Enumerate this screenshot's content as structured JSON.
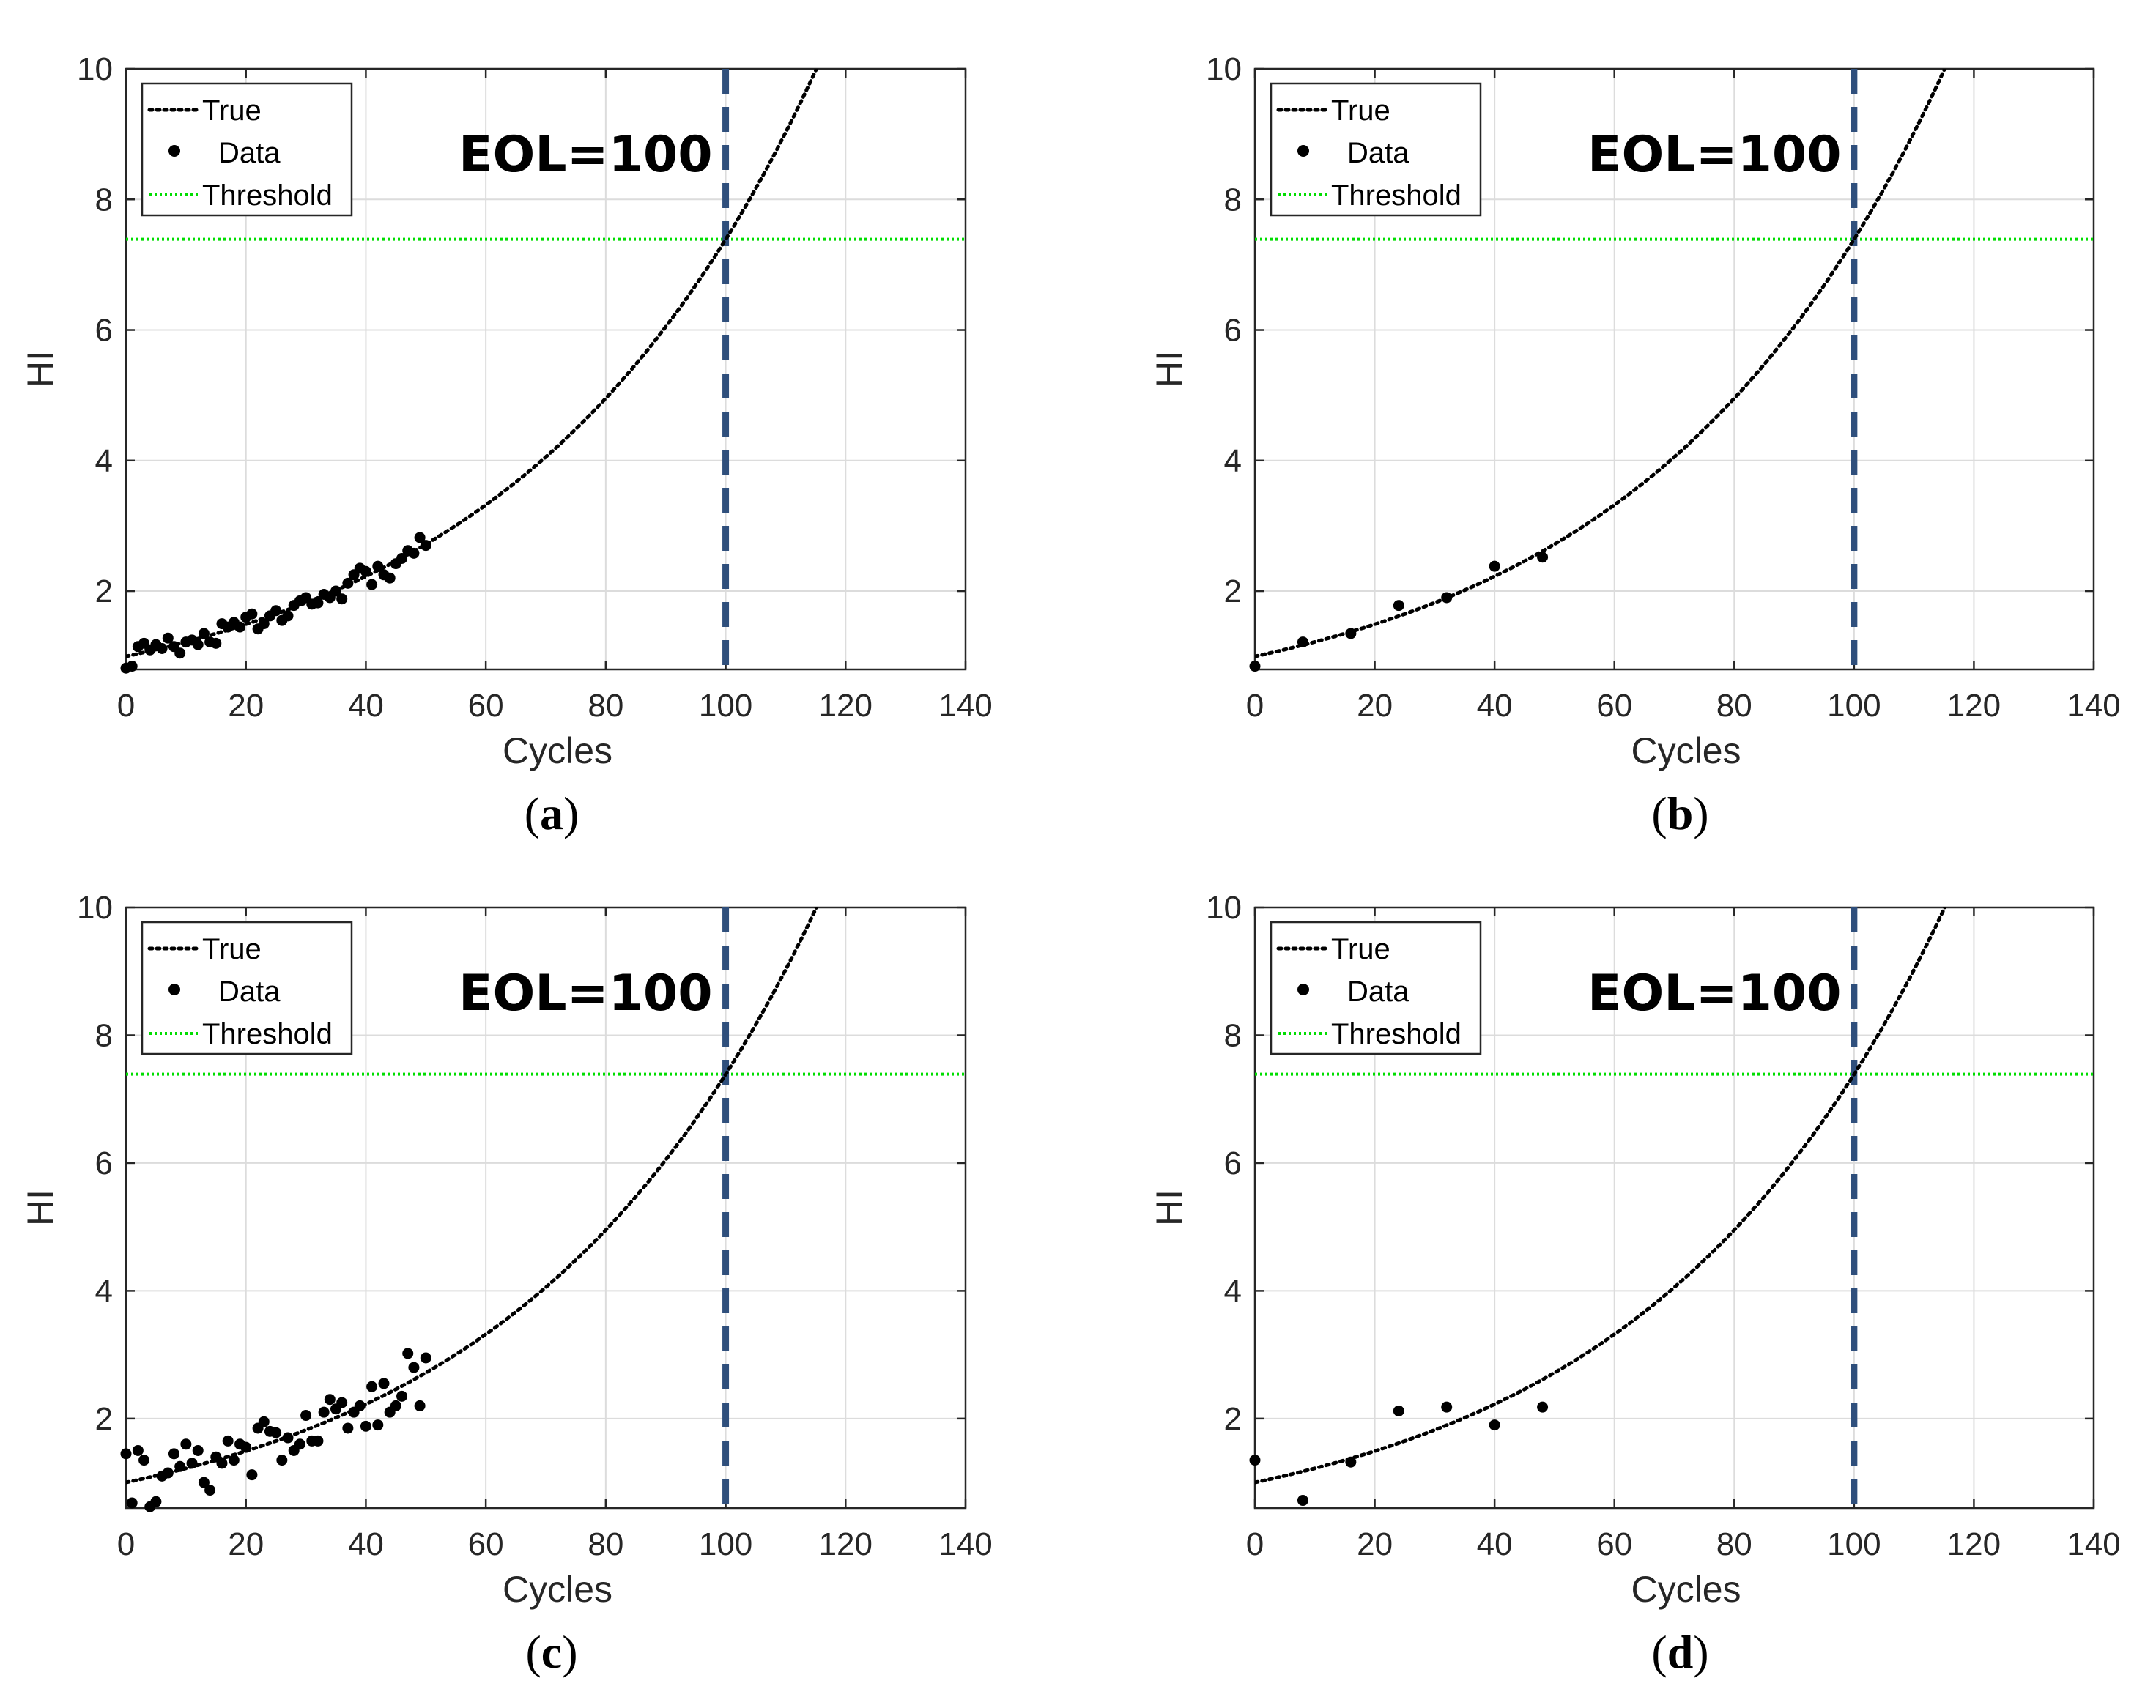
{
  "chart_data": [
    {
      "type": "scatter",
      "panel": "a",
      "caption_letter": "a",
      "xlabel": "Cycles",
      "ylabel": "HI",
      "xlim": [
        0,
        140
      ],
      "ylim": [
        0.8,
        10
      ],
      "xticks": [
        0,
        20,
        40,
        60,
        80,
        100,
        120,
        140
      ],
      "yticks": [
        2,
        4,
        6,
        8,
        10
      ],
      "grid": true,
      "annotation": "EOL=100",
      "eol": 100,
      "threshold": 7.39,
      "legend": [
        "True",
        "Data",
        "Threshold"
      ],
      "legend_position": "top-left",
      "true_curve": {
        "a": 1,
        "b": 0.02
      },
      "series": [
        {
          "name": "True",
          "style": "dotted-line",
          "color": "#000000"
        },
        {
          "name": "Data",
          "style": "dots",
          "color": "#000000",
          "x": [
            0,
            1,
            2,
            3,
            4,
            5,
            6,
            7,
            8,
            9,
            10,
            11,
            12,
            13,
            14,
            15,
            16,
            17,
            18,
            19,
            20,
            21,
            22,
            23,
            24,
            25,
            26,
            27,
            28,
            29,
            30,
            31,
            32,
            33,
            34,
            35,
            36,
            37,
            38,
            39,
            40,
            41,
            42,
            43,
            44,
            45,
            46,
            47,
            48,
            49,
            50
          ],
          "y": [
            0.82,
            0.85,
            1.15,
            1.2,
            1.1,
            1.18,
            1.12,
            1.28,
            1.15,
            1.05,
            1.22,
            1.25,
            1.18,
            1.35,
            1.22,
            1.2,
            1.5,
            1.45,
            1.52,
            1.45,
            1.6,
            1.65,
            1.42,
            1.5,
            1.62,
            1.7,
            1.55,
            1.62,
            1.78,
            1.85,
            1.9,
            1.8,
            1.82,
            1.95,
            1.9,
            2.0,
            1.88,
            2.12,
            2.25,
            2.35,
            2.3,
            2.1,
            2.38,
            2.25,
            2.2,
            2.42,
            2.5,
            2.62,
            2.58,
            2.82,
            2.7
          ]
        }
      ],
      "threshold_color": "#00dd00",
      "eol_color": "#2f4f7c"
    },
    {
      "type": "scatter",
      "panel": "b",
      "caption_letter": "b",
      "xlabel": "Cycles",
      "ylabel": "HI",
      "xlim": [
        0,
        140
      ],
      "ylim": [
        0.8,
        10
      ],
      "xticks": [
        0,
        20,
        40,
        60,
        80,
        100,
        120,
        140
      ],
      "yticks": [
        2,
        4,
        6,
        8,
        10
      ],
      "grid": true,
      "annotation": "EOL=100",
      "eol": 100,
      "threshold": 7.39,
      "legend": [
        "True",
        "Data",
        "Threshold"
      ],
      "legend_position": "top-left",
      "true_curve": {
        "a": 1,
        "b": 0.02
      },
      "series": [
        {
          "name": "True",
          "style": "dotted-line",
          "color": "#000000"
        },
        {
          "name": "Data",
          "style": "dots",
          "color": "#000000",
          "x": [
            0,
            8,
            16,
            24,
            32,
            40,
            48
          ],
          "y": [
            0.85,
            1.22,
            1.35,
            1.78,
            1.9,
            2.38,
            2.52
          ]
        }
      ],
      "threshold_color": "#00dd00",
      "eol_color": "#2f4f7c"
    },
    {
      "type": "scatter",
      "panel": "c",
      "caption_letter": "c",
      "xlabel": "Cycles",
      "ylabel": "HI",
      "xlim": [
        0,
        140
      ],
      "ylim": [
        0.6,
        10
      ],
      "xticks": [
        0,
        20,
        40,
        60,
        80,
        100,
        120,
        140
      ],
      "yticks": [
        2,
        4,
        6,
        8,
        10
      ],
      "grid": true,
      "annotation": "EOL=100",
      "eol": 100,
      "threshold": 7.39,
      "legend": [
        "True",
        "Data",
        "Threshold"
      ],
      "legend_position": "top-left",
      "true_curve": {
        "a": 1,
        "b": 0.02
      },
      "series": [
        {
          "name": "True",
          "style": "dotted-line",
          "color": "#000000"
        },
        {
          "name": "Data",
          "style": "dots",
          "color": "#000000",
          "x": [
            0,
            1,
            2,
            3,
            4,
            5,
            6,
            7,
            8,
            9,
            10,
            11,
            12,
            13,
            14,
            15,
            16,
            17,
            18,
            19,
            20,
            21,
            22,
            23,
            24,
            25,
            26,
            27,
            28,
            29,
            30,
            31,
            32,
            33,
            34,
            35,
            36,
            37,
            38,
            39,
            40,
            41,
            42,
            43,
            44,
            45,
            46,
            47,
            48,
            49,
            50
          ],
          "y": [
            1.45,
            0.68,
            1.5,
            1.35,
            0.62,
            0.7,
            1.1,
            1.15,
            1.45,
            1.25,
            1.6,
            1.3,
            1.5,
            1.0,
            0.88,
            1.4,
            1.3,
            1.65,
            1.35,
            1.6,
            1.55,
            1.12,
            1.85,
            1.95,
            1.8,
            1.78,
            1.35,
            1.7,
            1.5,
            1.6,
            2.05,
            1.65,
            1.65,
            2.1,
            2.3,
            2.15,
            2.25,
            1.85,
            2.1,
            2.2,
            1.88,
            2.5,
            1.9,
            2.55,
            2.1,
            2.2,
            2.35,
            3.02,
            2.8,
            2.2,
            2.95
          ]
        }
      ],
      "threshold_color": "#00dd00",
      "eol_color": "#2f4f7c"
    },
    {
      "type": "scatter",
      "panel": "d",
      "caption_letter": "d",
      "xlabel": "Cycles",
      "ylabel": "HI",
      "xlim": [
        0,
        140
      ],
      "ylim": [
        0.6,
        10
      ],
      "xticks": [
        0,
        20,
        40,
        60,
        80,
        100,
        120,
        140
      ],
      "yticks": [
        2,
        4,
        6,
        8,
        10
      ],
      "grid": true,
      "annotation": "EOL=100",
      "eol": 100,
      "threshold": 7.39,
      "legend": [
        "True",
        "Data",
        "Threshold"
      ],
      "legend_position": "top-left",
      "true_curve": {
        "a": 1,
        "b": 0.02
      },
      "series": [
        {
          "name": "True",
          "style": "dotted-line",
          "color": "#000000"
        },
        {
          "name": "Data",
          "style": "dots",
          "color": "#000000",
          "x": [
            0,
            8,
            16,
            24,
            32,
            40,
            48
          ],
          "y": [
            1.35,
            0.72,
            1.32,
            2.12,
            2.18,
            1.9,
            2.18
          ]
        }
      ],
      "threshold_color": "#00dd00",
      "eol_color": "#2f4f7c"
    }
  ]
}
